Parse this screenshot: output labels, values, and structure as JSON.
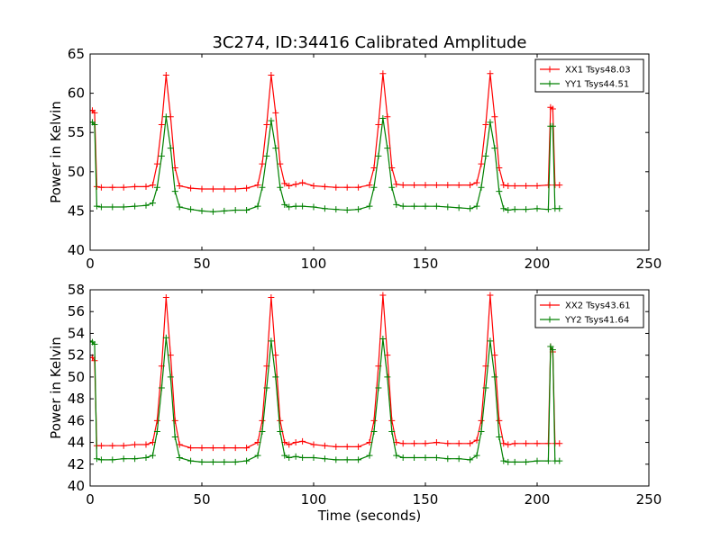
{
  "figure": {
    "title": "3C274, ID:34416 Calibrated Amplitude"
  },
  "chart_data": [
    {
      "type": "line",
      "title": "3C274, ID:34416 Calibrated Amplitude",
      "xlabel": "",
      "ylabel": "Power in Kelvin",
      "xlim": [
        0,
        250
      ],
      "ylim": [
        40,
        65
      ],
      "xticks": [
        0,
        50,
        100,
        150,
        200,
        250
      ],
      "yticks": [
        40,
        45,
        50,
        55,
        60,
        65
      ],
      "grid": false,
      "legend": "top-right",
      "markers": "plus",
      "series": [
        {
          "name": "XX1 Tsys48.03",
          "color": "#ff0000",
          "x": [
            0,
            1,
            2,
            3,
            5,
            10,
            15,
            20,
            25,
            28,
            30,
            32,
            34,
            36,
            38,
            40,
            45,
            50,
            55,
            60,
            65,
            70,
            75,
            77,
            79,
            81,
            83,
            85,
            87,
            89,
            92,
            95,
            100,
            105,
            110,
            115,
            120,
            125,
            127,
            129,
            131,
            133,
            135,
            137,
            140,
            145,
            150,
            155,
            160,
            165,
            170,
            173,
            175,
            177,
            179,
            181,
            183,
            185,
            187,
            190,
            195,
            200,
            205,
            206,
            207,
            208,
            210
          ],
          "y": [
            57.8,
            57.8,
            57.5,
            48.1,
            48.0,
            48.0,
            48.0,
            48.1,
            48.1,
            48.3,
            51.0,
            56.0,
            62.3,
            57.0,
            50.5,
            48.2,
            47.9,
            47.8,
            47.8,
            47.8,
            47.8,
            47.9,
            48.3,
            51.0,
            56.0,
            62.3,
            57.5,
            51.0,
            48.5,
            48.2,
            48.4,
            48.6,
            48.2,
            48.1,
            48.0,
            48.0,
            48.0,
            48.3,
            50.5,
            56.0,
            62.5,
            57.0,
            50.5,
            48.4,
            48.3,
            48.3,
            48.3,
            48.3,
            48.3,
            48.3,
            48.3,
            48.6,
            51.0,
            56.0,
            62.5,
            57.0,
            50.5,
            48.3,
            48.2,
            48.2,
            48.2,
            48.2,
            48.3,
            58.2,
            58.0,
            48.3,
            48.3
          ]
        },
        {
          "name": "YY1 Tsys44.51",
          "color": "#008000",
          "x": [
            0,
            1,
            2,
            3,
            5,
            10,
            15,
            20,
            25,
            28,
            30,
            32,
            34,
            36,
            38,
            40,
            45,
            50,
            55,
            60,
            65,
            70,
            75,
            77,
            79,
            81,
            83,
            85,
            87,
            89,
            92,
            95,
            100,
            105,
            110,
            115,
            120,
            125,
            127,
            129,
            131,
            133,
            135,
            137,
            140,
            145,
            150,
            155,
            160,
            165,
            170,
            173,
            175,
            177,
            179,
            181,
            183,
            185,
            187,
            190,
            195,
            200,
            205,
            206,
            207,
            208,
            210
          ],
          "y": [
            56.3,
            56.3,
            56.0,
            45.6,
            45.5,
            45.5,
            45.5,
            45.6,
            45.7,
            46.0,
            48.0,
            52.0,
            57.0,
            53.0,
            47.5,
            45.5,
            45.2,
            45.0,
            44.9,
            45.0,
            45.1,
            45.1,
            45.6,
            48.0,
            52.0,
            56.5,
            53.0,
            48.0,
            45.8,
            45.5,
            45.6,
            45.6,
            45.5,
            45.3,
            45.2,
            45.1,
            45.2,
            45.6,
            48.0,
            52.0,
            56.8,
            53.0,
            48.0,
            45.8,
            45.6,
            45.6,
            45.6,
            45.6,
            45.5,
            45.4,
            45.3,
            45.6,
            48.0,
            52.0,
            56.3,
            53.0,
            47.5,
            45.3,
            45.1,
            45.2,
            45.2,
            45.3,
            45.2,
            55.8,
            55.8,
            45.3,
            45.3
          ]
        }
      ]
    },
    {
      "type": "line",
      "title": "",
      "xlabel": "Time (seconds)",
      "ylabel": "Power in Kelvin",
      "xlim": [
        0,
        250
      ],
      "ylim": [
        40,
        58
      ],
      "xticks": [
        0,
        50,
        100,
        150,
        200,
        250
      ],
      "yticks": [
        40,
        42,
        44,
        46,
        48,
        50,
        52,
        54,
        56,
        58
      ],
      "grid": false,
      "legend": "top-right",
      "markers": "plus",
      "series": [
        {
          "name": "XX2 Tsys43.61",
          "color": "#ff0000",
          "x": [
            0,
            1,
            2,
            3,
            5,
            10,
            15,
            20,
            25,
            28,
            30,
            32,
            34,
            36,
            38,
            40,
            45,
            50,
            55,
            60,
            65,
            70,
            75,
            77,
            79,
            81,
            83,
            85,
            87,
            89,
            92,
            95,
            100,
            105,
            110,
            115,
            120,
            125,
            127,
            129,
            131,
            133,
            135,
            137,
            140,
            145,
            150,
            155,
            160,
            165,
            170,
            173,
            175,
            177,
            179,
            181,
            183,
            185,
            187,
            190,
            195,
            200,
            205,
            206,
            207,
            208,
            210
          ],
          "y": [
            51.8,
            51.8,
            51.5,
            43.7,
            43.7,
            43.7,
            43.7,
            43.8,
            43.8,
            44.0,
            46.0,
            51.0,
            57.3,
            52.0,
            46.0,
            43.8,
            43.5,
            43.5,
            43.5,
            43.5,
            43.5,
            43.5,
            44.0,
            46.0,
            51.0,
            57.3,
            52.0,
            46.0,
            44.0,
            43.8,
            44.0,
            44.1,
            43.8,
            43.7,
            43.6,
            43.6,
            43.6,
            44.0,
            46.0,
            51.0,
            57.5,
            52.0,
            46.0,
            44.0,
            43.9,
            43.9,
            43.9,
            44.0,
            43.9,
            43.9,
            43.9,
            44.2,
            46.0,
            51.0,
            57.5,
            52.0,
            46.0,
            43.9,
            43.8,
            43.9,
            43.9,
            43.9,
            43.9,
            52.8,
            52.3,
            43.9,
            43.9
          ]
        },
        {
          "name": "YY2 Tsys41.64",
          "color": "#008000",
          "x": [
            0,
            1,
            2,
            3,
            5,
            10,
            15,
            20,
            25,
            28,
            30,
            32,
            34,
            36,
            38,
            40,
            45,
            50,
            55,
            60,
            65,
            70,
            75,
            77,
            79,
            81,
            83,
            85,
            87,
            89,
            92,
            95,
            100,
            105,
            110,
            115,
            120,
            125,
            127,
            129,
            131,
            133,
            135,
            137,
            140,
            145,
            150,
            155,
            160,
            165,
            170,
            173,
            175,
            177,
            179,
            181,
            183,
            185,
            187,
            190,
            195,
            200,
            205,
            206,
            207,
            208,
            210
          ],
          "y": [
            53.3,
            53.2,
            53.0,
            42.5,
            42.4,
            42.4,
            42.5,
            42.5,
            42.6,
            42.8,
            45.0,
            49.0,
            53.6,
            50.0,
            44.5,
            42.6,
            42.3,
            42.2,
            42.2,
            42.2,
            42.2,
            42.3,
            42.8,
            45.0,
            49.0,
            53.3,
            50.0,
            45.0,
            42.8,
            42.6,
            42.7,
            42.6,
            42.6,
            42.5,
            42.4,
            42.4,
            42.4,
            42.8,
            45.0,
            49.0,
            53.5,
            50.0,
            45.0,
            42.8,
            42.6,
            42.6,
            42.6,
            42.6,
            42.5,
            42.5,
            42.4,
            42.8,
            45.0,
            49.0,
            53.3,
            50.0,
            44.5,
            42.3,
            42.2,
            42.2,
            42.2,
            42.3,
            42.3,
            52.8,
            52.5,
            42.3,
            42.3
          ]
        }
      ]
    }
  ]
}
